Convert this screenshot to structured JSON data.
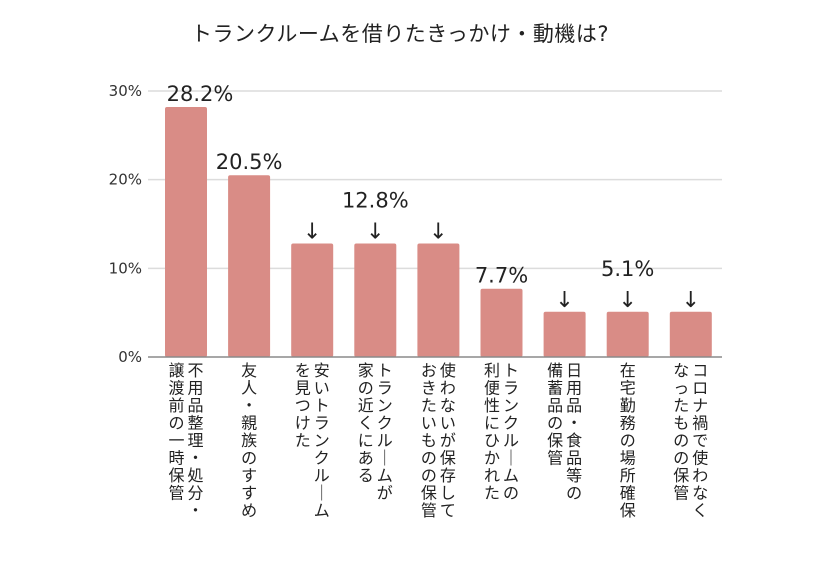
{
  "chart_data": {
    "type": "bar",
    "title": "トランクルームを借りたきっかけ・動機は?",
    "xlabel": "",
    "ylabel": "",
    "ylim": [
      0,
      30
    ],
    "yticks": [
      0,
      10,
      20,
      30
    ],
    "ytick_labels": [
      "0%",
      "10%",
      "20%",
      "30%"
    ],
    "grid": true,
    "bar_color": "#d98c86",
    "categories": [
      [
        "不用品整理・処分・",
        "譲渡前の一時保管"
      ],
      [
        "友人・親族のすすめ"
      ],
      [
        "安いトランクルーム",
        "を見つけた"
      ],
      [
        "トランクルームが",
        "家の近くにある"
      ],
      [
        "使わないが保存して",
        "おきたいものの保管"
      ],
      [
        "トランクルームの",
        "利便性にひかれた"
      ],
      [
        "日用品・食品等の",
        "備蓄品の保管"
      ],
      [
        "在宅勤務の場所確保"
      ],
      [
        "コロナ禍で使わなく",
        "なったものの保管"
      ]
    ],
    "values": [
      28.2,
      20.5,
      12.8,
      12.8,
      12.8,
      7.7,
      5.1,
      5.1,
      5.1
    ],
    "data_labels": [
      {
        "text": "28.2%",
        "bar": 0
      },
      {
        "text": "20.5%",
        "bar": 1
      },
      {
        "text": "12.8%",
        "bar": 3
      },
      {
        "text": "7.7%",
        "bar": 5
      },
      {
        "text": "5.1%",
        "bar": 7
      }
    ],
    "arrow_bars": [
      2,
      3,
      4,
      6,
      7,
      8
    ],
    "arrow_glyph": "↓"
  }
}
